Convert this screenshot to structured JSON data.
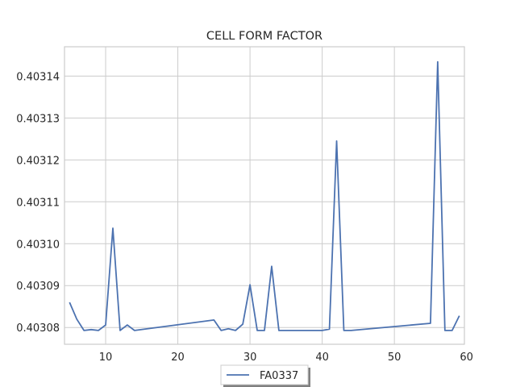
{
  "chart_data": {
    "type": "line",
    "title": "CELL FORM FACTOR",
    "xlabel": "",
    "ylabel": "",
    "xlim": [
      4.3,
      59.7
    ],
    "ylim": [
      0.403076,
      0.403147
    ],
    "xticks": [
      10,
      20,
      30,
      40,
      50,
      60
    ],
    "xtick_labels": [
      "10",
      "20",
      "30",
      "40",
      "50",
      "60"
    ],
    "yticks": [
      0.40308,
      0.40309,
      0.4031,
      0.40311,
      0.40312,
      0.40313,
      0.40314
    ],
    "ytick_labels": [
      "0.40308",
      "0.40309",
      "0.40310",
      "0.40311",
      "0.40312",
      "0.40313",
      "0.40314"
    ],
    "grid": true,
    "legend_position": "bottom-center",
    "series": [
      {
        "name": "FA0337",
        "color": "#4c72b0",
        "x": [
          5,
          6,
          7,
          8,
          9,
          10,
          11,
          12,
          13,
          14,
          25,
          26,
          27,
          28,
          29,
          30,
          31,
          32,
          33,
          34,
          40,
          41,
          42,
          43,
          44,
          55,
          56,
          57,
          58,
          59
        ],
        "y": [
          0.403086,
          0.403082,
          0.4030793,
          0.4030795,
          0.4030793,
          0.4030806,
          0.4031037,
          0.4030793,
          0.4030806,
          0.4030793,
          0.4030818,
          0.4030793,
          0.4030797,
          0.4030793,
          0.4030808,
          0.4030902,
          0.4030793,
          0.4030793,
          0.4030946,
          0.4030793,
          0.4030793,
          0.4030796,
          0.4031245,
          0.4030793,
          0.4030793,
          0.403081,
          0.4031434,
          0.4030793,
          0.4030793,
          0.4030828
        ]
      }
    ]
  }
}
